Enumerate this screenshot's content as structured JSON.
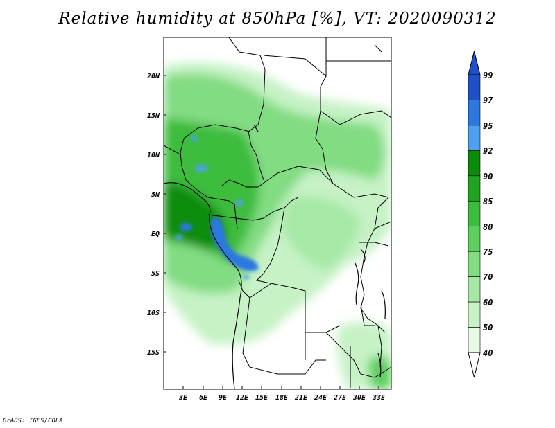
{
  "title": "Relative humidity at 850hPa [%], VT: 2020090312",
  "credit": "GrADS: IGES/COLA",
  "map": {
    "lat_labels": [
      "20N",
      "15N",
      "10N",
      "5N",
      "EQ",
      "5S",
      "10S",
      "15S"
    ],
    "lon_labels": [
      "3E",
      "6E",
      "9E",
      "12E",
      "15E",
      "18E",
      "21E",
      "24E",
      "27E",
      "30E",
      "33E"
    ]
  },
  "colorbar": {
    "levels": [
      "99",
      "97",
      "95",
      "92",
      "90",
      "85",
      "80",
      "75",
      "70",
      "60",
      "50",
      "40"
    ],
    "colors": [
      "#1e50c8",
      "#2c78e0",
      "#4ea0f0",
      "#0a8c0a",
      "#1fa51f",
      "#3cbc3c",
      "#5ccf5c",
      "#82dc82",
      "#a6e8a6",
      "#c6f2c6",
      "#e6fae6"
    ],
    "top_arrow_color": "#1e50c8",
    "bottom_arrow_color": "#ffffff"
  },
  "chart_data": {
    "type": "heatmap",
    "title": "Relative humidity at 850hPa [%], VT: 2020090312",
    "variable": "Relative humidity",
    "level": "850hPa",
    "units": "%",
    "valid_time": "2020090312",
    "contour_levels": [
      40,
      50,
      60,
      70,
      75,
      80,
      85,
      90,
      92,
      95,
      97,
      99
    ],
    "lat_ticks": [
      "20N",
      "15N",
      "10N",
      "5N",
      "EQ",
      "5S",
      "10S",
      "15S"
    ],
    "lon_ticks": [
      "3E",
      "6E",
      "9E",
      "12E",
      "15E",
      "18E",
      "21E",
      "24E",
      "27E",
      "30E",
      "33E"
    ]
  }
}
